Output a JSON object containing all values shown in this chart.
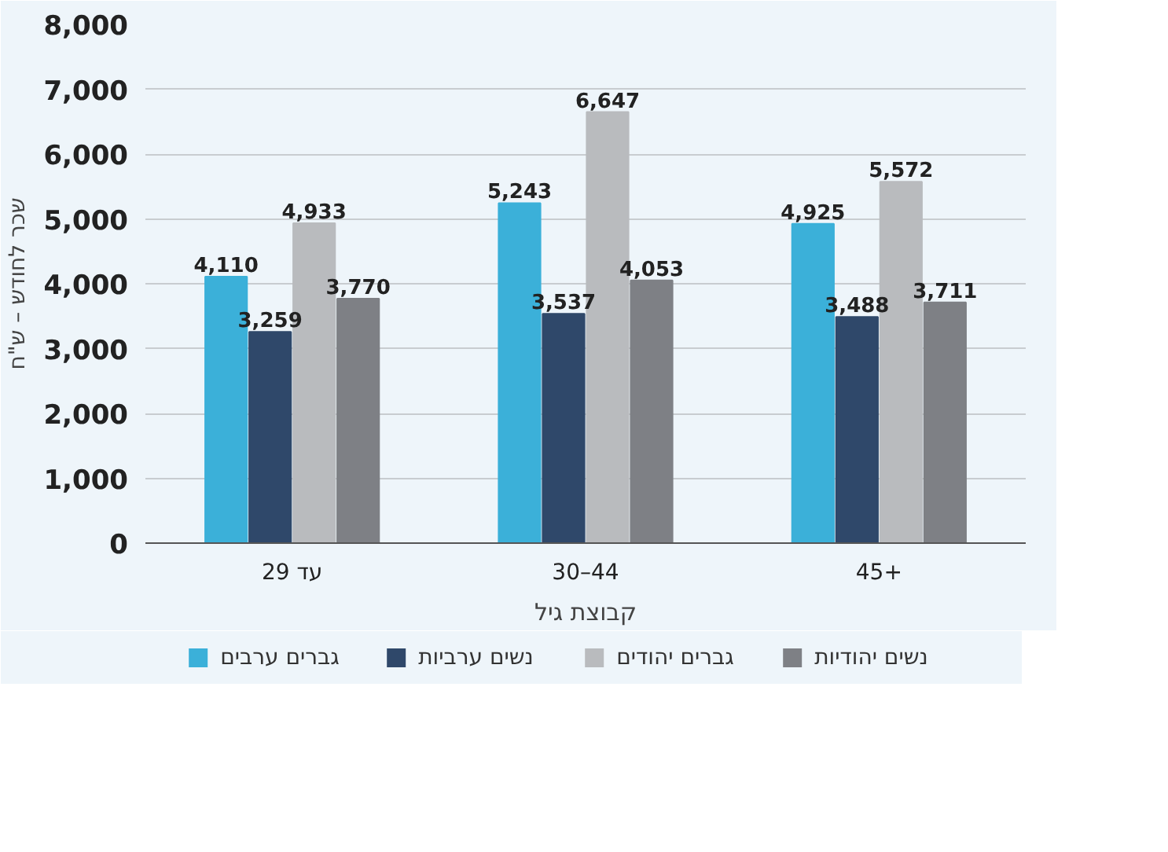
{
  "chart_data": {
    "type": "bar",
    "categories": [
      "עד 29",
      "30–44",
      "45+"
    ],
    "xlabel": "קבוצת גיל",
    "ylabel": "שכר לחודש – ש\"ח",
    "series": [
      {
        "name": "גברים ערבים",
        "color": "#3bb0d9",
        "values": [
          4110,
          5243,
          4925
        ],
        "value_labels": [
          "4,110",
          "5,243",
          "4,925"
        ]
      },
      {
        "name": "נשים ערביות",
        "color": "#2f486a",
        "values": [
          3259,
          3537,
          3488
        ],
        "value_labels": [
          "3,259",
          "3,537",
          "3,488"
        ]
      },
      {
        "name": "גברים יהודים",
        "color": "#b9bbbe",
        "values": [
          4933,
          6647,
          5572
        ],
        "value_labels": [
          "4,933",
          "6,647",
          "5,572"
        ]
      },
      {
        "name": "נשים יהודיות",
        "color": "#7e8085",
        "values": [
          3770,
          4053,
          3711
        ],
        "value_labels": [
          "3,770",
          "4,053",
          "3,711"
        ]
      }
    ],
    "ylim": [
      0,
      8000
    ],
    "yticks": [
      {
        "value": 0,
        "label": "0"
      },
      {
        "value": 1000,
        "label": "1,000"
      },
      {
        "value": 2000,
        "label": "2,000"
      },
      {
        "value": 3000,
        "label": "3,000"
      },
      {
        "value": 4000,
        "label": "4,000"
      },
      {
        "value": 5000,
        "label": "5,000"
      },
      {
        "value": 6000,
        "label": "6,000"
      },
      {
        "value": 7000,
        "label": "7,000"
      },
      {
        "value": 8000,
        "label": "8,000"
      }
    ],
    "grid": "y",
    "legend": "bottom",
    "data_labels": true
  }
}
